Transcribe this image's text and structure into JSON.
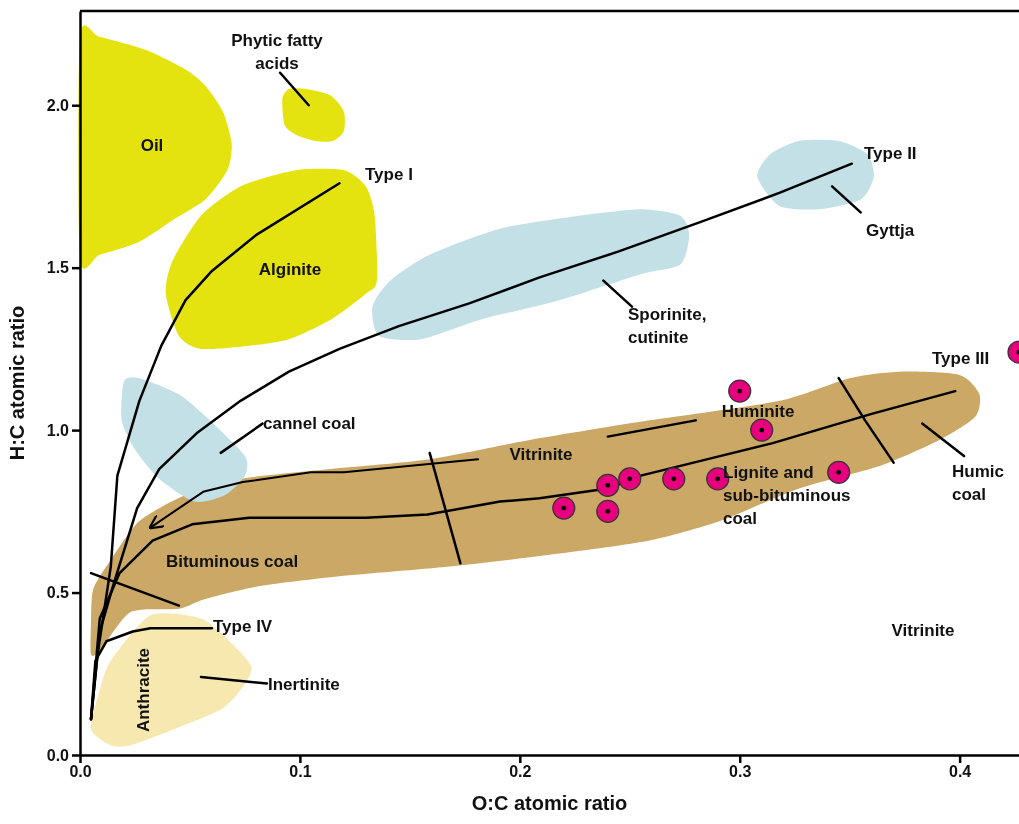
{
  "chart_data": {
    "type": "scatter",
    "xlabel": "O:C atomic ratio",
    "ylabel": "H:C atomic ratio",
    "xlim": [
      0,
      0.427
    ],
    "ylim": [
      0,
      2.29
    ],
    "xticks": [
      {
        "value": 0,
        "label": "0.0"
      },
      0.1,
      0.2,
      0.3,
      0.4
    ],
    "yticks": [
      {
        "value": 0,
        "label": "0.0"
      },
      0.5,
      {
        "value": 1,
        "label": "1.0"
      },
      1.5,
      {
        "value": 2,
        "label": "2.0"
      }
    ],
    "grid": false,
    "series": [
      {
        "type": "area",
        "color": "#cba866",
        "x": [
          0.005,
          0.006,
          0.014,
          0.027,
          0.048,
          0.073,
          0.114,
          0.159,
          0.205,
          0.259,
          0.318,
          0.35,
          0.373,
          0.4,
          0.409,
          0.407,
          0.391,
          0.364,
          0.327,
          0.291,
          0.259,
          0.218,
          0.168,
          0.118,
          0.082,
          0.057,
          0.045,
          0.023,
          0.009,
          0.005
        ],
        "values": [
          0.4,
          0.51,
          0.6,
          0.72,
          0.8,
          0.85,
          0.88,
          0.91,
          0.97,
          1.03,
          1.09,
          1.16,
          1.18,
          1.17,
          1.11,
          1.04,
          0.97,
          0.89,
          0.82,
          0.72,
          0.66,
          0.62,
          0.58,
          0.55,
          0.52,
          0.48,
          0.45,
          0.44,
          0.32,
          0.31
        ]
      },
      {
        "type": "area",
        "color": "#e5e30f",
        "x": [
          0,
          0.009,
          0.03,
          0.048,
          0.057,
          0.065,
          0.069,
          0.067,
          0.057,
          0.043,
          0.027,
          0.009,
          0
        ],
        "values": [
          2.21,
          2.21,
          2.17,
          2.11,
          2.06,
          1.98,
          1.88,
          1.8,
          1.71,
          1.65,
          1.58,
          1.54,
          1.53
        ]
      },
      {
        "type": "area",
        "color": "#e5e30f",
        "x": [
          0.092,
          0.095,
          0.103,
          0.114,
          0.12,
          0.12,
          0.115,
          0.107,
          0.098,
          0.093
        ],
        "values": [
          2.02,
          2.05,
          2.05,
          2.03,
          1.98,
          1.92,
          1.89,
          1.89,
          1.91,
          1.94
        ]
      },
      {
        "type": "area",
        "color": "#e5e30f",
        "x": [
          0.039,
          0.042,
          0.055,
          0.073,
          0.098,
          0.12,
          0.13,
          0.134,
          0.135,
          0.13,
          0.114,
          0.095,
          0.077,
          0.055,
          0.045
        ],
        "values": [
          1.42,
          1.52,
          1.66,
          1.75,
          1.8,
          1.8,
          1.75,
          1.66,
          1.46,
          1.42,
          1.34,
          1.28,
          1.26,
          1.25,
          1.29
        ]
      },
      {
        "type": "area",
        "color": "#c2e0e6",
        "x": [
          0.133,
          0.141,
          0.159,
          0.191,
          0.227,
          0.255,
          0.273,
          0.277,
          0.273,
          0.255,
          0.218,
          0.182,
          0.155,
          0.136
        ],
        "values": [
          1.38,
          1.46,
          1.54,
          1.62,
          1.66,
          1.68,
          1.66,
          1.6,
          1.51,
          1.48,
          1.4,
          1.34,
          1.28,
          1.29
        ]
      },
      {
        "type": "area",
        "color": "#c2e0e6",
        "x": [
          0.308,
          0.314,
          0.327,
          0.345,
          0.358,
          0.361,
          0.355,
          0.336,
          0.318
        ],
        "values": [
          1.78,
          1.85,
          1.89,
          1.89,
          1.85,
          1.78,
          1.71,
          1.68,
          1.69
        ]
      },
      {
        "type": "area",
        "color": "#c2e0e6",
        "x": [
          0.02,
          0.027,
          0.045,
          0.059,
          0.075,
          0.075,
          0.066,
          0.052,
          0.036,
          0.025,
          0.019
        ],
        "values": [
          1.15,
          1.16,
          1.11,
          1.03,
          0.92,
          0.86,
          0.8,
          0.78,
          0.85,
          0.94,
          1.03
        ]
      },
      {
        "type": "area",
        "color": "#f7e8b0",
        "x": [
          0.005,
          0.009,
          0.014,
          0.032,
          0.055,
          0.068,
          0.078,
          0.073,
          0.064,
          0.043,
          0.023,
          0.014
        ],
        "values": [
          0.08,
          0.2,
          0.29,
          0.43,
          0.42,
          0.35,
          0.27,
          0.2,
          0.14,
          0.08,
          0.03,
          0.03
        ]
      },
      {
        "type": "line",
        "color": "#000000",
        "x": [
          0.005,
          0.008,
          0.014,
          0.017,
          0.027,
          0.037,
          0.048,
          0.06,
          0.08,
          0.118
        ],
        "values": [
          0.11,
          0.31,
          0.58,
          0.86,
          1.09,
          1.26,
          1.4,
          1.49,
          1.6,
          1.76
        ]
      },
      {
        "type": "line",
        "color": "#000000",
        "x": [
          0.005,
          0.009,
          0.015,
          0.026,
          0.036,
          0.053,
          0.073,
          0.095,
          0.118,
          0.145,
          0.177,
          0.209,
          0.245,
          0.282,
          0.318,
          0.351
        ],
        "values": [
          0.11,
          0.38,
          0.52,
          0.76,
          0.88,
          0.99,
          1.09,
          1.18,
          1.25,
          1.32,
          1.39,
          1.47,
          1.55,
          1.64,
          1.73,
          1.82
        ]
      },
      {
        "type": "line",
        "color": "#000000",
        "x": [
          0.005,
          0.009,
          0.018,
          0.033,
          0.051,
          0.077,
          0.13,
          0.158,
          0.191,
          0.209,
          0.24,
          0.255,
          0.285,
          0.315,
          0.345,
          0.36,
          0.398
        ],
        "values": [
          0.11,
          0.42,
          0.56,
          0.66,
          0.71,
          0.73,
          0.73,
          0.74,
          0.78,
          0.79,
          0.82,
          0.86,
          0.91,
          0.96,
          1.02,
          1.05,
          1.12
        ]
      },
      {
        "type": "line",
        "color": "#000000",
        "x": [
          0.005,
          0.007,
          0.012,
          0.024,
          0.032,
          0.06
        ],
        "values": [
          0.11,
          0.29,
          0.35,
          0.38,
          0.39,
          0.39
        ]
      },
      {
        "type": "line",
        "color": "#000000",
        "x": [
          0.181,
          0.12,
          0.105,
          0.074,
          0.056,
          0.032
        ],
        "values": [
          0.91,
          0.87,
          0.87,
          0.84,
          0.81,
          0.7
        ]
      },
      {
        "type": "line",
        "color": "#000000",
        "x": [
          0.345,
          0.357,
          0.37
        ],
        "values": [
          1.16,
          1.03,
          0.9
        ]
      },
      {
        "type": "line",
        "color": "#000000",
        "x": [
          0.005,
          0.045,
          null,
          0.159,
          0.173,
          null,
          0.24,
          0.28
        ],
        "values": [
          0.56,
          0.46,
          null,
          0.93,
          0.59,
          null,
          0.98,
          1.03
        ]
      },
      {
        "type": "line",
        "color": "#000000",
        "x": [
          0.055,
          0.085,
          null,
          0.083,
          0.064,
          null,
          0.091,
          0.104,
          null,
          0.238,
          0.251,
          null,
          0.342,
          0.355,
          null,
          0.383,
          0.402
        ],
        "values": [
          0.24,
          0.22,
          null,
          1.02,
          0.93,
          null,
          2.1,
          2.0,
          null,
          1.46,
          1.38,
          null,
          1.75,
          1.67,
          null,
          1.02,
          0.92
        ]
      },
      {
        "color": "#e6007e",
        "marker": "circle",
        "x": [
          0.22,
          0.24,
          0.24,
          0.25,
          0.27,
          0.29,
          0.3,
          0.31,
          0.345,
          0.427
        ],
        "values": [
          0.76,
          0.83,
          0.75,
          0.85,
          0.85,
          0.85,
          1.12,
          1.0,
          0.87,
          1.24
        ]
      }
    ],
    "annotations": [
      "Oil",
      "Phytic fatty\nacids",
      "Type I",
      "Alginite",
      "Type II",
      "Gyttja",
      "Sporinite,\ncutinite",
      "cannel coal",
      "Vitrinite",
      "Huminite",
      "Lignite and\nsub-bituminous\ncoal",
      "Type III",
      "Humic\ncoal",
      "Bituminous coal",
      "Type IV",
      "Anthracite",
      "Inertinite",
      "Vitrinite"
    ]
  }
}
